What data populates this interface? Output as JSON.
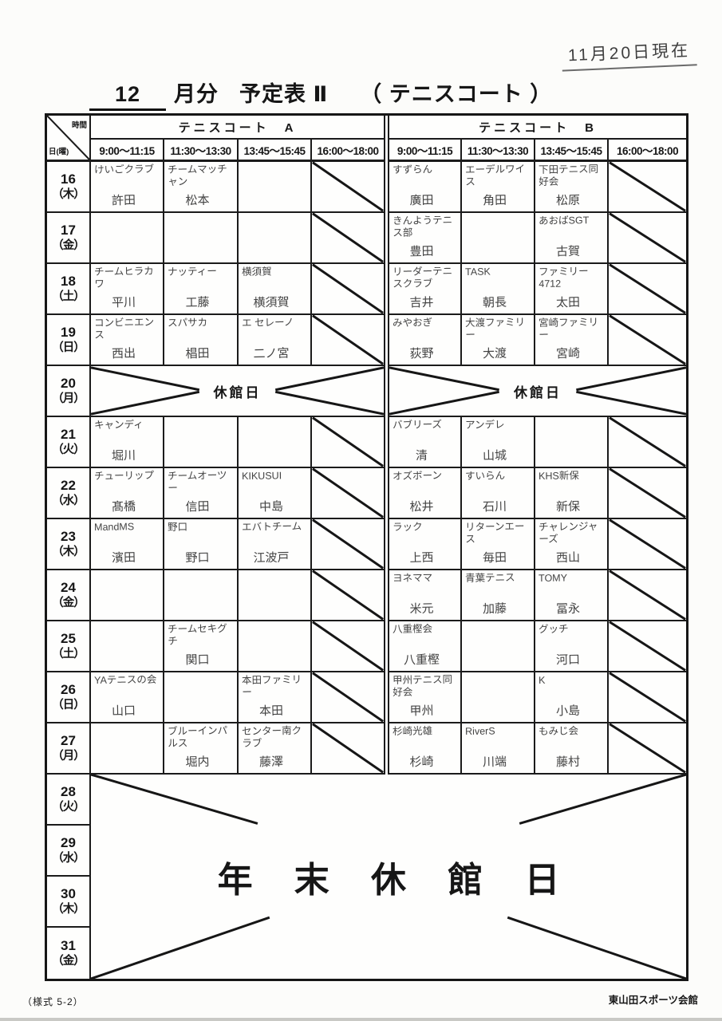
{
  "page": {
    "date_note": "11月20日現在",
    "title_month": "12",
    "title_suffix": "月分",
    "title_main": "予定表 Ⅱ",
    "title_paren": "（ テニスコート ）",
    "footer_left": "（様式 5-2）",
    "footer_right": "東山田スポーツ会館"
  },
  "table": {
    "corner_top": "時間",
    "corner_bottom": "日(曜)",
    "closed_label": "休館日",
    "yearend_label": "年 末 休 館 日",
    "courts": [
      {
        "name": "テニスコート　A",
        "slots": [
          "9:00〜11:15",
          "11:30〜13:30",
          "13:45〜15:45",
          "16:00〜18:00"
        ]
      },
      {
        "name": "テニスコート　B",
        "slots": [
          "9:00〜11:15",
          "11:30〜13:30",
          "13:45〜15:45",
          "16:00〜18:00"
        ]
      }
    ],
    "rows": [
      {
        "day": "16",
        "weekday": "（木）",
        "type": "normal",
        "a": [
          {
            "team": "けいごクラブ",
            "person": "許田"
          },
          {
            "team": "チームマッチャン",
            "person": "松本"
          },
          {},
          {
            "slash": true
          }
        ],
        "b": [
          {
            "team": "すずらん",
            "person": "廣田"
          },
          {
            "team": "エーデルワイス",
            "person": "角田"
          },
          {
            "team": "下田テニス同好会",
            "person": "松原"
          },
          {
            "slash": true
          }
        ]
      },
      {
        "day": "17",
        "weekday": "（金）",
        "type": "normal",
        "a": [
          {},
          {},
          {},
          {
            "slash": true
          }
        ],
        "b": [
          {
            "team": "きんようテニス部",
            "person": "豊田"
          },
          {},
          {
            "team": "あおばSGT",
            "person": "古賀"
          },
          {
            "slash": true
          }
        ]
      },
      {
        "day": "18",
        "weekday": "（土）",
        "type": "normal",
        "a": [
          {
            "team": "チームヒラカワ",
            "person": "平川"
          },
          {
            "team": "ナッティー",
            "person": "工藤"
          },
          {
            "team": "横須賀",
            "person": "横須賀"
          },
          {
            "slash": true
          }
        ],
        "b": [
          {
            "team": "リーダーテニスクラブ",
            "person": "吉井"
          },
          {
            "team": "TASK",
            "person": "朝長"
          },
          {
            "team": "ファミリー4712",
            "person": "太田"
          },
          {
            "slash": true
          }
        ]
      },
      {
        "day": "19",
        "weekday": "（日）",
        "type": "normal",
        "a": [
          {
            "team": "コンビニエンス",
            "person": "西出"
          },
          {
            "team": "スパサカ",
            "person": "椙田"
          },
          {
            "team": "エ セレーノ",
            "person": "二ノ宮"
          },
          {
            "slash": true
          }
        ],
        "b": [
          {
            "team": "みやおぎ",
            "person": "荻野"
          },
          {
            "team": "大渡ファミリー",
            "person": "大渡"
          },
          {
            "team": "宮崎ファミリー",
            "person": "宮崎"
          },
          {
            "slash": true
          }
        ]
      },
      {
        "day": "20",
        "weekday": "（月）",
        "type": "closed"
      },
      {
        "day": "21",
        "weekday": "（火）",
        "type": "normal",
        "a": [
          {
            "team": "キャンディ",
            "person": "堀川"
          },
          {},
          {},
          {
            "slash": true
          }
        ],
        "b": [
          {
            "team": "バブリーズ",
            "person": "清"
          },
          {
            "team": "アンデレ",
            "person": "山城"
          },
          {},
          {
            "slash": true
          }
        ]
      },
      {
        "day": "22",
        "weekday": "（水）",
        "type": "normal",
        "a": [
          {
            "team": "チューリップ",
            "person": "髙橋"
          },
          {
            "team": "チームオーツー",
            "person": "信田"
          },
          {
            "team": "KIKUSUI",
            "person": "中島"
          },
          {
            "slash": true
          }
        ],
        "b": [
          {
            "team": "オズボーン",
            "person": "松井"
          },
          {
            "team": "すいらん",
            "person": "石川"
          },
          {
            "team": "KHS新保",
            "person": "新保"
          },
          {
            "slash": true
          }
        ]
      },
      {
        "day": "23",
        "weekday": "（木）",
        "type": "normal",
        "a": [
          {
            "team": "MandMS",
            "person": "濱田"
          },
          {
            "team": "野口",
            "person": "野口"
          },
          {
            "team": "エバトチーム",
            "person": "江波戸"
          },
          {
            "slash": true
          }
        ],
        "b": [
          {
            "team": "ラック",
            "person": "上西"
          },
          {
            "team": "リターンエース",
            "person": "毎田"
          },
          {
            "team": "チャレンジャーズ",
            "person": "西山"
          },
          {
            "slash": true
          }
        ]
      },
      {
        "day": "24",
        "weekday": "（金）",
        "type": "normal",
        "a": [
          {},
          {},
          {},
          {
            "slash": true
          }
        ],
        "b": [
          {
            "team": "ヨネママ",
            "person": "米元"
          },
          {
            "team": "青葉テニス",
            "person": "加藤"
          },
          {
            "team": "TOMY",
            "person": "冨永"
          },
          {
            "slash": true
          }
        ]
      },
      {
        "day": "25",
        "weekday": "（土）",
        "type": "normal",
        "a": [
          {},
          {
            "team": "チームセキグチ",
            "person": "関口"
          },
          {},
          {
            "slash": true
          }
        ],
        "b": [
          {
            "team": "八重樫会",
            "person": "八重樫"
          },
          {},
          {
            "team": "グッチ",
            "person": "河口"
          },
          {
            "slash": true
          }
        ]
      },
      {
        "day": "26",
        "weekday": "（日）",
        "type": "normal",
        "a": [
          {
            "team": "YAテニスの会",
            "person": "山口"
          },
          {},
          {
            "team": "本田ファミリー",
            "person": "本田"
          },
          {
            "slash": true
          }
        ],
        "b": [
          {
            "team": "甲州テニス同好会",
            "person": "甲州"
          },
          {},
          {
            "team": "K",
            "person": "小島"
          },
          {
            "slash": true
          }
        ]
      },
      {
        "day": "27",
        "weekday": "（月）",
        "type": "normal",
        "a": [
          {},
          {
            "team": "ブルーインパルス",
            "person": "堀内"
          },
          {
            "team": "センター南クラブ",
            "person": "藤澤"
          },
          {
            "slash": true
          }
        ],
        "b": [
          {
            "team": "杉崎光雄",
            "person": "杉崎"
          },
          {
            "team": "RiverS",
            "person": "川端"
          },
          {
            "team": "もみじ会",
            "person": "藤村"
          },
          {
            "slash": true
          }
        ]
      },
      {
        "day": "28",
        "weekday": "（火）",
        "type": "yearend_start"
      },
      {
        "day": "29",
        "weekday": "（水）",
        "type": "yearend"
      },
      {
        "day": "30",
        "weekday": "（木）",
        "type": "yearend"
      },
      {
        "day": "31",
        "weekday": "（金）",
        "type": "yearend"
      }
    ]
  }
}
